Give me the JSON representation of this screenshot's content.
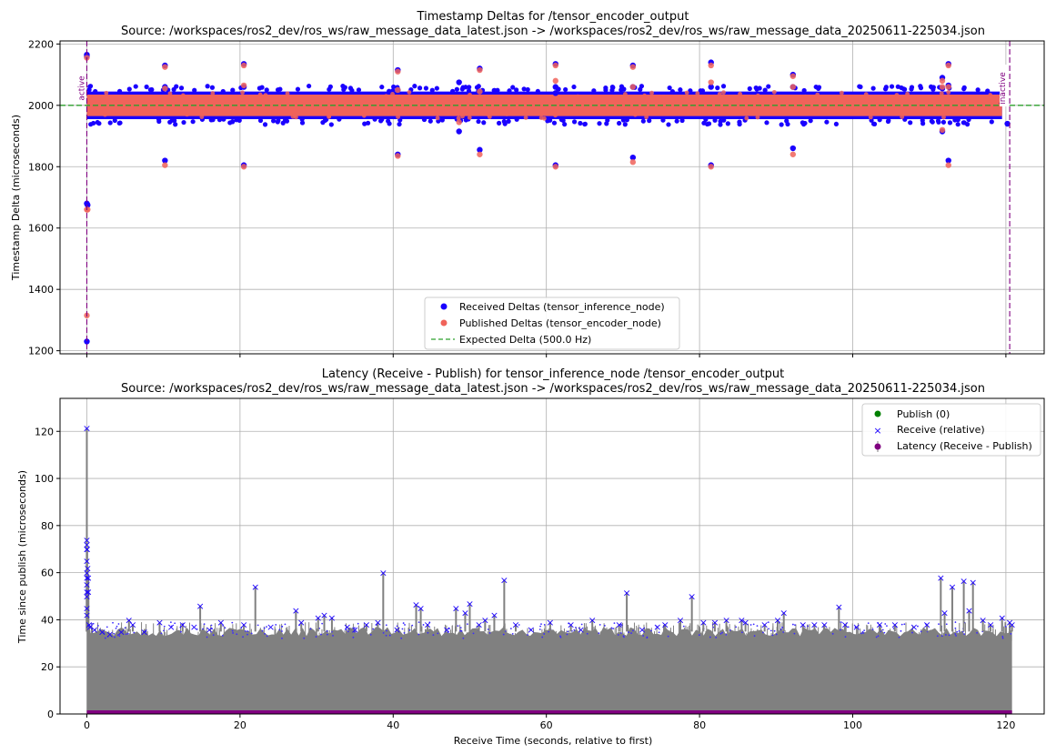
{
  "chart_data": [
    {
      "type": "scatter",
      "title": "Timestamp Deltas for /tensor_encoder_output",
      "subtitle": "Source: /workspaces/ros2_dev/ros_ws/raw_message_data_latest.json -> /workspaces/ros2_dev/ros_ws/raw_message_data_20250611-225034.json",
      "ylabel": "Timestamp Delta (microseconds)",
      "xlabel": "",
      "xlim": [
        -3.5,
        125
      ],
      "ylim": [
        1190,
        2210
      ],
      "yticks": [
        1200,
        1400,
        1600,
        1800,
        2000,
        2200
      ],
      "xticks": [
        0,
        20,
        40,
        60,
        80,
        100,
        120
      ],
      "grid": true,
      "legend_position": "lower-center",
      "colors": {
        "received": "#1a00ff",
        "published": "#f0635a",
        "expected": "#2ca02c",
        "marker": "#800080"
      },
      "band": {
        "x_range": [
          0,
          119.5
        ],
        "received_range": [
          1955,
          2045
        ],
        "published_range": [
          1965,
          2035
        ],
        "center": 2000
      },
      "series": [
        {
          "name": "Received Deltas (tensor_inference_node)",
          "x": [
            0,
            0,
            0,
            0,
            0.1,
            10.2,
            10.2,
            10.2,
            20.5,
            20.5,
            20.5,
            40.6,
            40.6,
            40.6,
            48.6,
            48.6,
            51.3,
            51.3,
            51.3,
            61.2,
            61.2,
            61.2,
            61.2,
            71.3,
            71.3,
            71.3,
            81.5,
            81.5,
            81.5,
            92.2,
            92.2,
            92.2,
            111.7,
            111.7,
            111.7,
            112.5,
            112.5,
            112.5,
            120.2
          ],
          "y": [
            1230,
            1680,
            2160,
            2165,
            1675,
            2130,
            2060,
            1820,
            2135,
            2060,
            1805,
            2115,
            2050,
            1840,
            2075,
            1915,
            2120,
            2045,
            1855,
            2135,
            2060,
            2040,
            1805,
            2130,
            2060,
            1830,
            2140,
            2060,
            1805,
            2100,
            2060,
            1860,
            2090,
            2055,
            1915,
            2135,
            2065,
            1820,
            1940
          ]
        },
        {
          "name": "Published Deltas (tensor_encoder_node)",
          "x": [
            0,
            0,
            0,
            0.1,
            10.2,
            10.2,
            10.2,
            20.5,
            20.5,
            20.5,
            40.6,
            40.6,
            40.6,
            48.6,
            51.3,
            51.3,
            51.3,
            61.2,
            61.2,
            61.2,
            71.3,
            71.3,
            71.3,
            81.5,
            81.5,
            81.5,
            92.2,
            92.2,
            92.2,
            111.7,
            111.7,
            111.7,
            112.5,
            112.5,
            112.5
          ],
          "y": [
            1315,
            1660,
            2155,
            1660,
            2125,
            2055,
            1805,
            2130,
            2065,
            1800,
            2110,
            2050,
            1835,
            1945,
            2115,
            2045,
            1840,
            2130,
            2080,
            1800,
            2125,
            2060,
            1815,
            2130,
            2075,
            1800,
            2095,
            2060,
            1840,
            2080,
            2060,
            1920,
            2130,
            2060,
            1805
          ]
        },
        {
          "name": "Expected Delta (500.0 Hz)",
          "y": 2000
        }
      ],
      "vlines": [
        {
          "x": 0,
          "label": "active"
        },
        {
          "x": 120.5,
          "label": "inactive"
        }
      ]
    },
    {
      "type": "scatter",
      "title": "Latency (Receive - Publish) for tensor_inference_node /tensor_encoder_output",
      "subtitle": "Source: /workspaces/ros2_dev/ros_ws/raw_message_data_latest.json -> /workspaces/ros2_dev/ros_ws/raw_message_data_20250611-225034.json",
      "xlabel": "Receive Time (seconds, relative to first)",
      "ylabel": "Time since publish (microseconds)",
      "xlim": [
        -3.5,
        125
      ],
      "ylim": [
        0,
        134
      ],
      "yticks": [
        0,
        20,
        40,
        60,
        80,
        100,
        120
      ],
      "xticks": [
        0,
        20,
        40,
        60,
        80,
        100,
        120
      ],
      "grid": true,
      "legend_position": "top-right",
      "colors": {
        "publish": "#008000",
        "receive": "#1a00ff",
        "latency": "#808080",
        "baseline": "#800080"
      },
      "baseline_latency_us": 35,
      "series": [
        {
          "name": "Publish (0)",
          "y": 0
        },
        {
          "name": "Receive (relative)",
          "x": [
            0,
            0,
            0,
            0,
            0,
            0,
            0,
            0,
            0,
            0,
            0,
            0,
            0.05,
            0.1,
            0.2,
            0.2,
            0.3,
            0.4,
            1.0,
            2.0,
            3.0,
            4.5,
            5.5,
            6.0,
            7.5,
            9.5,
            11.0,
            12.5,
            14.0,
            14.8,
            16.0,
            17.5,
            20.5,
            22.0,
            24.0,
            27.3,
            28.0,
            30.2,
            31.0,
            32.0,
            34.0,
            35.0,
            36.5,
            38.0,
            38.7,
            40.5,
            43.0,
            43.6,
            44.5,
            47.0,
            48.2,
            49.4,
            50.0,
            51.2,
            52.0,
            53.2,
            54.5,
            56.0,
            58.0,
            60.5,
            63.2,
            64.5,
            66.0,
            69.5,
            70.5,
            72.5,
            74.5,
            75.5,
            77.5,
            79.0,
            80.5,
            82.0,
            83.5,
            85.5,
            86.0,
            88.5,
            90.2,
            91.0,
            93.5,
            95.0,
            96.3,
            98.2,
            99.0,
            100.5,
            103.5,
            105.5,
            108.0,
            109.7,
            111.5,
            112.0,
            113.0,
            114.5,
            115.2,
            115.7,
            117.0,
            118.0,
            119.5,
            120.5,
            120.8
          ],
          "y": [
            121.5,
            74,
            72,
            70,
            65,
            60,
            58,
            55,
            52,
            50,
            45,
            42,
            70,
            62,
            58,
            52,
            38,
            37,
            36,
            35,
            34,
            35,
            40,
            38,
            35,
            39,
            37,
            38,
            37,
            46,
            36,
            39,
            38,
            54,
            37,
            44,
            39,
            41,
            42,
            41,
            37,
            36,
            38,
            39,
            60,
            36,
            46.5,
            45,
            38,
            36,
            45,
            43,
            47,
            38,
            40,
            42,
            57,
            38,
            36,
            39,
            38,
            36,
            40,
            38,
            51.5,
            36,
            37,
            38,
            40,
            50,
            39,
            39,
            40,
            40,
            39,
            38,
            40,
            43,
            38,
            38,
            38,
            45.5,
            38,
            37,
            38,
            38,
            37,
            38,
            58,
            43,
            54,
            56.5,
            44,
            56,
            40,
            38,
            41,
            39,
            38
          ]
        },
        {
          "name": "Latency (Receive - Publish)"
        }
      ]
    }
  ]
}
